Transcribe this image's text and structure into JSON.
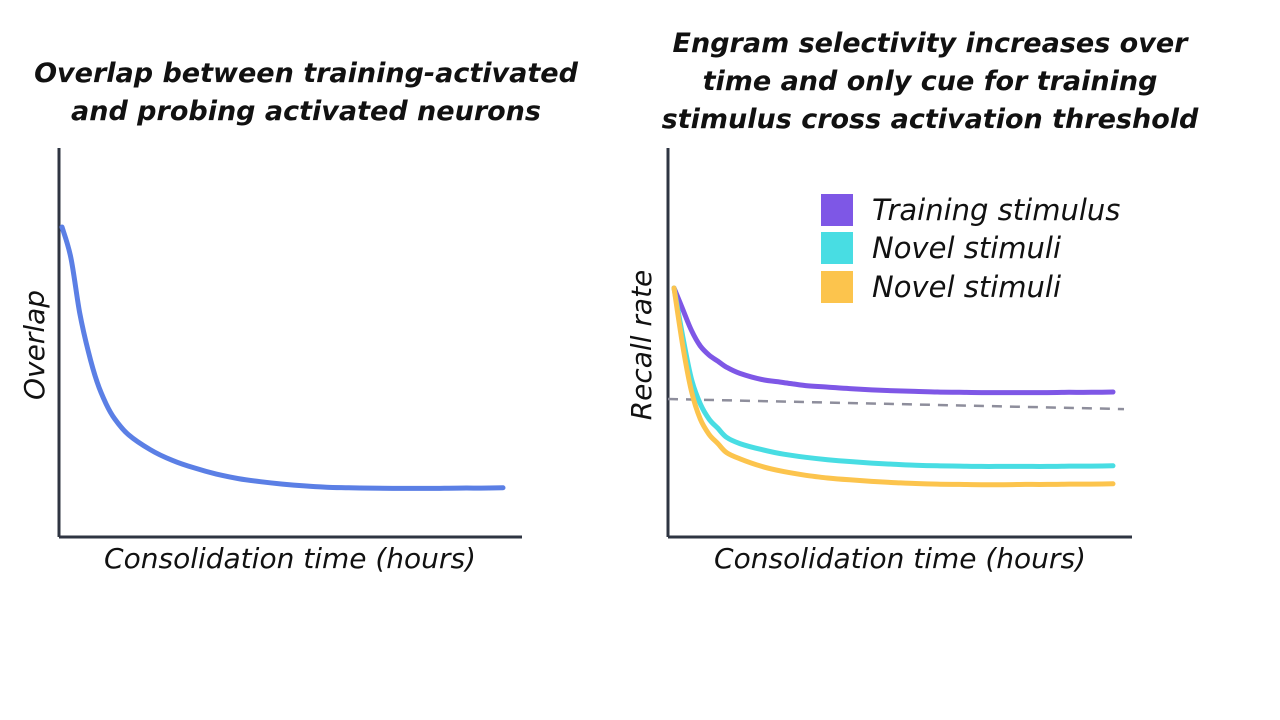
{
  "chart_data": [
    {
      "type": "line",
      "title": [
        "Overlap between training-activated",
        "and probing activated neurons"
      ],
      "xlabel": "Consolidation time (hours)",
      "ylabel": "Overlap",
      "xlim": [
        0,
        1
      ],
      "ylim": [
        0,
        1
      ],
      "grid": false,
      "legend": null,
      "x": [
        0.0,
        0.02,
        0.04,
        0.06,
        0.08,
        0.1,
        0.12,
        0.15,
        0.2,
        0.25,
        0.3,
        0.35,
        0.4,
        0.45,
        0.5,
        0.55,
        0.6,
        0.65,
        0.7,
        0.75,
        0.8,
        0.85,
        0.9,
        0.95,
        1.0
      ],
      "series": [
        {
          "color": "#5b7fe5",
          "values": [
            1.0,
            0.9,
            0.72,
            0.59,
            0.49,
            0.42,
            0.37,
            0.32,
            0.27,
            0.235,
            0.21,
            0.19,
            0.175,
            0.165,
            0.157,
            0.151,
            0.147,
            0.145,
            0.144,
            0.143,
            0.143,
            0.143,
            0.144,
            0.144,
            0.145
          ]
        }
      ]
    },
    {
      "type": "line",
      "title": [
        "Engram selectivity increases over",
        "time and only cue for training",
        "stimulus cross activation threshold"
      ],
      "xlabel": "Consolidation time (hours)",
      "ylabel": "Recall rate",
      "xlim": [
        0,
        1
      ],
      "ylim": [
        0,
        1
      ],
      "grid": false,
      "legend": "top-right",
      "x": [
        0.0,
        0.02,
        0.04,
        0.06,
        0.08,
        0.1,
        0.12,
        0.15,
        0.2,
        0.25,
        0.3,
        0.35,
        0.4,
        0.45,
        0.5,
        0.55,
        0.6,
        0.65,
        0.7,
        0.75,
        0.8,
        0.85,
        0.9,
        0.95,
        1.0
      ],
      "series": [
        {
          "name": "Training stimulus",
          "color": "#7e57e6",
          "values": [
            0.8,
            0.73,
            0.66,
            0.61,
            0.58,
            0.56,
            0.54,
            0.52,
            0.5,
            0.49,
            0.48,
            0.475,
            0.47,
            0.466,
            0.463,
            0.461,
            0.459,
            0.458,
            0.457,
            0.457,
            0.457,
            0.457,
            0.458,
            0.458,
            0.459
          ]
        },
        {
          "name": "Novel stimuli",
          "color": "#48dde3",
          "values": [
            0.8,
            0.64,
            0.5,
            0.42,
            0.37,
            0.34,
            0.31,
            0.29,
            0.27,
            0.255,
            0.245,
            0.237,
            0.231,
            0.226,
            0.222,
            0.219,
            0.217,
            0.216,
            0.215,
            0.215,
            0.215,
            0.215,
            0.216,
            0.216,
            0.217
          ]
        },
        {
          "name": "Novel stimuli",
          "color": "#fcc44d",
          "values": [
            0.8,
            0.61,
            0.46,
            0.37,
            0.32,
            0.29,
            0.26,
            0.24,
            0.215,
            0.198,
            0.186,
            0.177,
            0.171,
            0.166,
            0.162,
            0.159,
            0.157,
            0.156,
            0.155,
            0.155,
            0.156,
            0.156,
            0.157,
            0.157,
            0.158
          ]
        }
      ],
      "threshold": {
        "x": [
          0.0,
          1.0
        ],
        "values": [
          0.436,
          0.403
        ],
        "color": "#8e8e9c",
        "style": "dashed"
      }
    }
  ]
}
